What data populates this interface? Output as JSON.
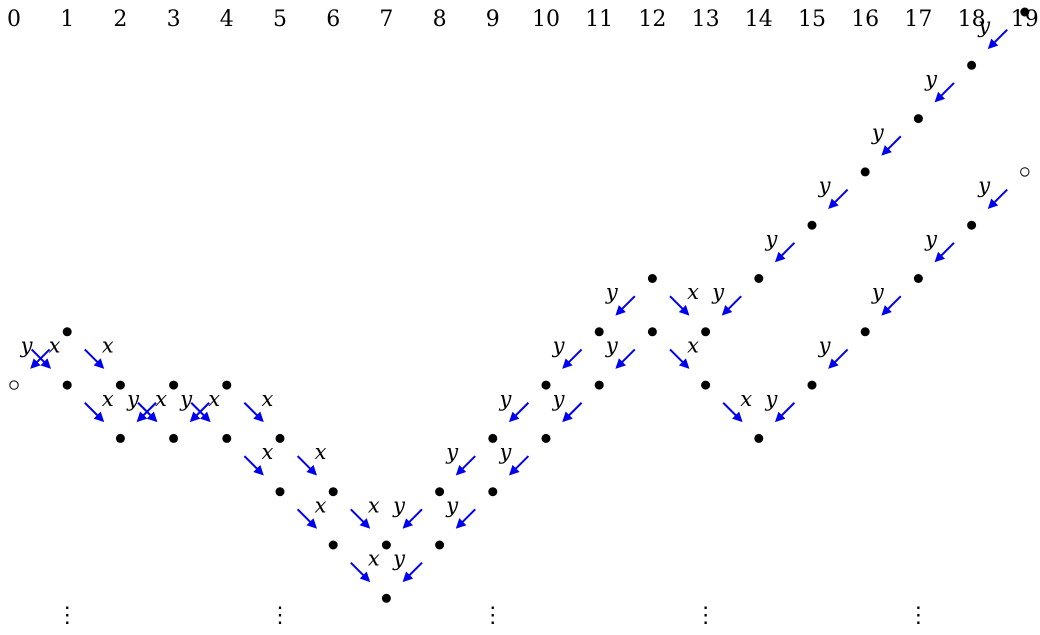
{
  "column_labels": [
    "0",
    "1",
    "2",
    "3",
    "4",
    "5",
    "6",
    "7",
    "8",
    "9",
    "10",
    "11",
    "12",
    "13",
    "14",
    "15",
    "16",
    "17",
    "18",
    "19"
  ],
  "arrow_color": "#0000ee",
  "point_color": "#000000",
  "labels": {
    "x": "x",
    "y": "y"
  },
  "ellipsis_symbol": "⋮",
  "ellipsis_columns": [
    1,
    5,
    9,
    13,
    17
  ],
  "paths": [
    {
      "name": "lower-path",
      "start": {
        "col": 0,
        "level": 3,
        "marker": "open",
        "label": "y"
      },
      "steps": [
        "y",
        "x",
        "x",
        "y",
        "x",
        "x",
        "x",
        "y",
        "y",
        "y",
        "y",
        "y",
        "x",
        "y",
        "y",
        "y",
        "y",
        "y",
        "y"
      ]
    },
    {
      "name": "upper-path",
      "start": {
        "col": 0,
        "level": 4,
        "marker": "none",
        "label": "y"
      },
      "steps": [
        "x",
        "x",
        "y",
        "x",
        "x",
        "x",
        "x",
        "y",
        "y",
        "y",
        "y",
        "y",
        "x",
        "x",
        "y",
        "y",
        "y",
        "y",
        "y"
      ],
      "end_marker": "open"
    }
  ]
}
